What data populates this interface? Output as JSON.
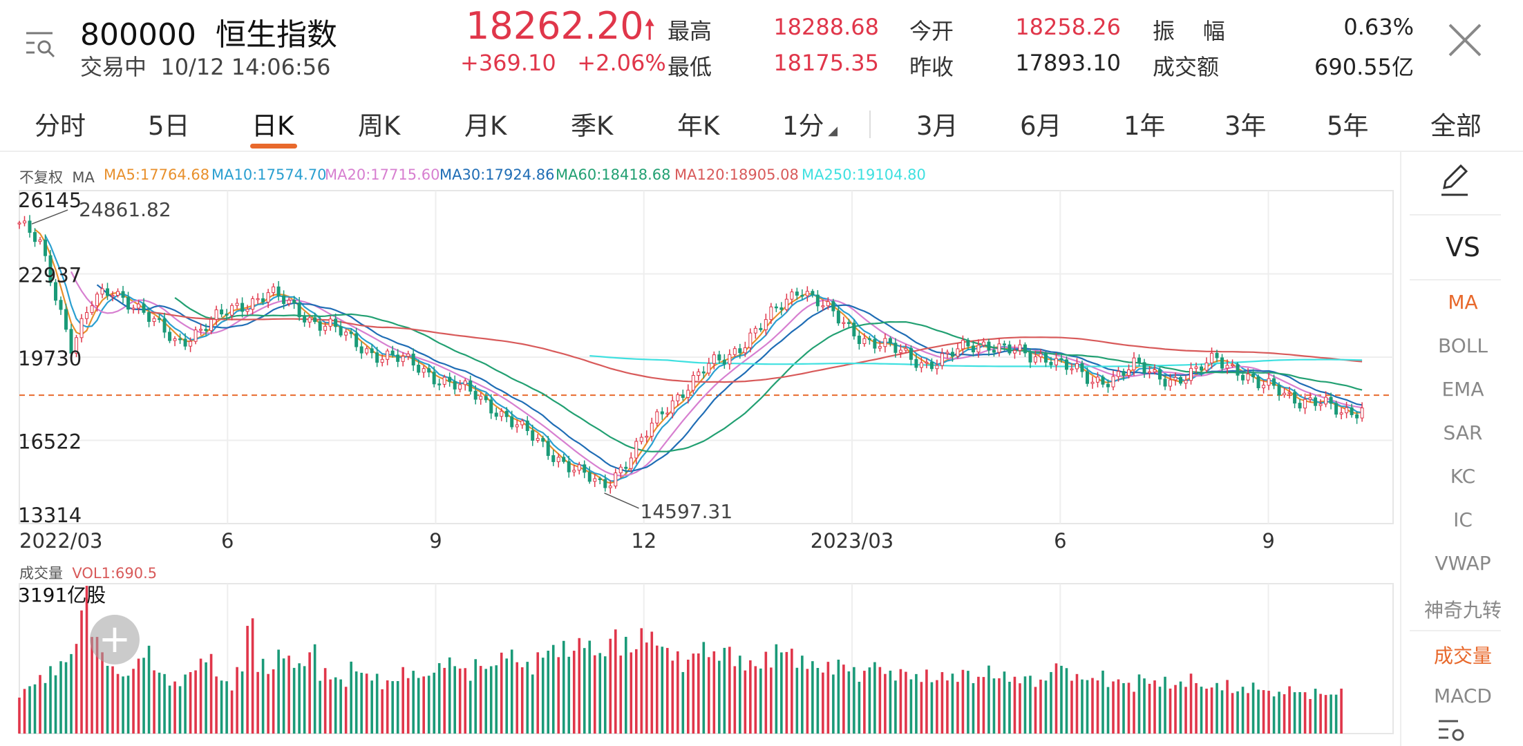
{
  "header": {
    "symbol": "800000",
    "name": "恒生指数",
    "status": "交易中",
    "datetime": "10/12 14:06:56",
    "price": "18262.20",
    "change": "+369.10",
    "change_pct": "+2.06%",
    "stats": [
      {
        "label": "最高",
        "value": "18288.68",
        "color": "#e0364a"
      },
      {
        "label": "最低",
        "value": "18175.35",
        "color": "#e0364a"
      },
      {
        "label": "今开",
        "value": "18258.26",
        "color": "#e0364a"
      },
      {
        "label": "昨收",
        "value": "17893.10",
        "color": "#222222"
      },
      {
        "label": "振    幅",
        "value": "0.63%",
        "color": "#222222"
      },
      {
        "label": "成交额",
        "value": "690.55亿",
        "color": "#222222"
      }
    ]
  },
  "tabs": {
    "items": [
      "分时",
      "5日",
      "日K",
      "周K",
      "月K",
      "季K",
      "年K",
      "1分",
      "3月",
      "6月",
      "1年",
      "3年",
      "5年",
      "全部"
    ],
    "active": "日K"
  },
  "side_panel": {
    "draw_icon": "pencil-icon",
    "vs_label": "VS",
    "items": [
      "MA",
      "BOLL",
      "EMA",
      "SAR",
      "KC",
      "IC",
      "VWAP",
      "神奇九转",
      "成交量",
      "MACD"
    ],
    "active_items": [
      "MA",
      "成交量"
    ],
    "settings_icon": "settings-icon"
  },
  "chart_labels": {
    "adj": "不复权",
    "ma_name": "MA",
    "vol_title": "成交量",
    "vol_ma": "VOL1:690.5",
    "vol_max": "3191亿股",
    "hi_mark": "24861.82",
    "lo_mark": "14597.31"
  },
  "colors": {
    "up": "#e0364a",
    "down": "#1a9a78",
    "accent": "#e8692c"
  },
  "chart_data": {
    "type": "candlestick",
    "x_ticks": [
      "2022/03",
      "6",
      "9",
      "12",
      "2023/03",
      "6",
      "9"
    ],
    "y_ticks": [
      "26145",
      "22937",
      "19730",
      "16522",
      "13314"
    ],
    "ylim": [
      13314,
      26145
    ],
    "current_price_line": 18262.2,
    "high_annotation": {
      "label": "24861.82",
      "value": 24861.82
    },
    "low_annotation": {
      "label": "14597.31",
      "value": 14597.31
    },
    "ma_legend": [
      {
        "label": "MA5:17764.68",
        "color": "#e8902c"
      },
      {
        "label": "MA10:17574.70",
        "color": "#2a9fd0"
      },
      {
        "label": "MA20:17715.60",
        "color": "#d77fd0"
      },
      {
        "label": "MA30:17924.86",
        "color": "#1f6db5"
      },
      {
        "label": "MA60:18418.68",
        "color": "#22a072"
      },
      {
        "label": "MA120:18905.08",
        "color": "#d85a5a"
      },
      {
        "label": "MA250:19104.80",
        "color": "#3fe0e0"
      }
    ],
    "price_series": [
      {
        "t": 0,
        "v": 24900
      },
      {
        "t": 2,
        "v": 24000
      },
      {
        "t": 4,
        "v": 21500
      },
      {
        "t": 5,
        "v": 20200
      },
      {
        "t": 7,
        "v": 21800
      },
      {
        "t": 9,
        "v": 22300
      },
      {
        "t": 11,
        "v": 21800
      },
      {
        "t": 13,
        "v": 21000
      },
      {
        "t": 15,
        "v": 20300
      },
      {
        "t": 17,
        "v": 20700
      },
      {
        "t": 19,
        "v": 21200
      },
      {
        "t": 21,
        "v": 21700
      },
      {
        "t": 24,
        "v": 22200
      },
      {
        "t": 26,
        "v": 21700
      },
      {
        "t": 28,
        "v": 21200
      },
      {
        "t": 30,
        "v": 20900
      },
      {
        "t": 32,
        "v": 20300
      },
      {
        "t": 34,
        "v": 19900
      },
      {
        "t": 36,
        "v": 19700
      },
      {
        "t": 38,
        "v": 19400
      },
      {
        "t": 40,
        "v": 19000
      },
      {
        "t": 42,
        "v": 18600
      },
      {
        "t": 44,
        "v": 18200
      },
      {
        "t": 46,
        "v": 17700
      },
      {
        "t": 48,
        "v": 17000
      },
      {
        "t": 50,
        "v": 16400
      },
      {
        "t": 52,
        "v": 15800
      },
      {
        "t": 54,
        "v": 15200
      },
      {
        "t": 56,
        "v": 14700
      },
      {
        "t": 58,
        "v": 15600
      },
      {
        "t": 60,
        "v": 16600
      },
      {
        "t": 62,
        "v": 17700
      },
      {
        "t": 64,
        "v": 18600
      },
      {
        "t": 66,
        "v": 19300
      },
      {
        "t": 68,
        "v": 19700
      },
      {
        "t": 70,
        "v": 20500
      },
      {
        "t": 72,
        "v": 21200
      },
      {
        "t": 74,
        "v": 22000
      },
      {
        "t": 75,
        "v": 22500
      },
      {
        "t": 77,
        "v": 21800
      },
      {
        "t": 79,
        "v": 21000
      },
      {
        "t": 81,
        "v": 20500
      },
      {
        "t": 83,
        "v": 20200
      },
      {
        "t": 85,
        "v": 19800
      },
      {
        "t": 87,
        "v": 19500
      },
      {
        "t": 89,
        "v": 19700
      },
      {
        "t": 91,
        "v": 20100
      },
      {
        "t": 93,
        "v": 20300
      },
      {
        "t": 95,
        "v": 20000
      },
      {
        "t": 97,
        "v": 19700
      },
      {
        "t": 99,
        "v": 19800
      },
      {
        "t": 101,
        "v": 19300
      },
      {
        "t": 103,
        "v": 18700
      },
      {
        "t": 105,
        "v": 19000
      },
      {
        "t": 107,
        "v": 19400
      },
      {
        "t": 109,
        "v": 19000
      },
      {
        "t": 111,
        "v": 18900
      },
      {
        "t": 113,
        "v": 19100
      },
      {
        "t": 115,
        "v": 19700
      },
      {
        "t": 117,
        "v": 19300
      },
      {
        "t": 119,
        "v": 18600
      },
      {
        "t": 121,
        "v": 18500
      },
      {
        "t": 123,
        "v": 18100
      },
      {
        "t": 125,
        "v": 17900
      },
      {
        "t": 127,
        "v": 17600
      },
      {
        "t": 129,
        "v": 17800
      }
    ],
    "volume_heights": [
      0.3,
      0.35,
      0.4,
      0.45,
      0.5,
      0.6,
      1.0,
      0.7,
      0.55,
      0.45,
      0.4,
      0.5,
      0.6,
      0.45,
      0.4,
      0.35,
      0.42,
      0.5,
      0.55,
      0.4,
      0.35,
      0.45,
      0.78,
      0.5,
      0.45,
      0.58,
      0.52,
      0.48,
      0.6,
      0.44,
      0.4,
      0.37,
      0.48,
      0.42,
      0.4,
      0.36,
      0.38,
      0.45,
      0.42,
      0.4,
      0.47,
      0.52,
      0.48,
      0.44,
      0.5,
      0.46,
      0.54,
      0.58,
      0.5,
      0.48,
      0.55,
      0.6,
      0.62,
      0.58,
      0.66,
      0.62,
      0.55,
      0.7,
      0.65,
      0.6,
      0.72,
      0.68,
      0.6,
      0.55,
      0.5,
      0.58,
      0.62,
      0.55,
      0.6,
      0.52,
      0.5,
      0.48,
      0.55,
      0.6,
      0.58,
      0.52,
      0.5,
      0.46,
      0.48,
      0.5,
      0.45,
      0.42,
      0.5,
      0.46,
      0.42,
      0.44,
      0.4,
      0.43,
      0.38,
      0.42,
      0.4,
      0.44,
      0.38,
      0.46,
      0.4,
      0.42,
      0.38,
      0.4,
      0.36,
      0.42,
      0.5,
      0.44,
      0.4,
      0.38,
      0.42,
      0.36,
      0.38,
      0.34,
      0.4,
      0.36,
      0.38,
      0.34,
      0.36,
      0.4,
      0.32,
      0.34,
      0.36,
      0.3,
      0.32,
      0.34,
      0.3,
      0.28,
      0.32,
      0.3,
      0.28,
      0.3,
      0.27,
      0.3
    ]
  }
}
